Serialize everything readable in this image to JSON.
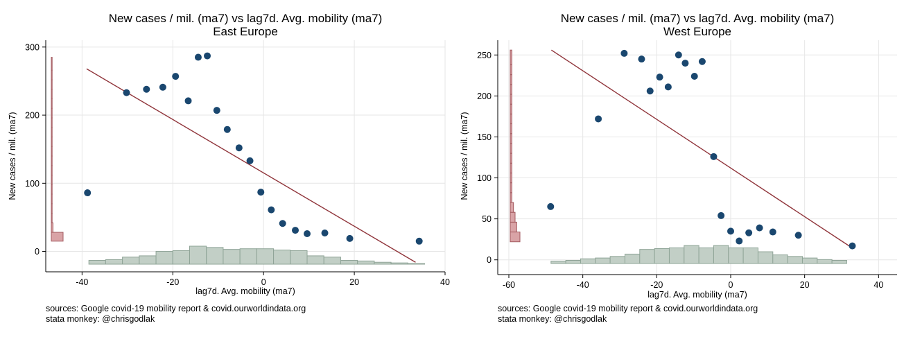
{
  "chart_data": [
    {
      "type": "scatter",
      "title": "New cases / mil. (ma7) vs lag7d. Avg. mobility (ma7)",
      "subtitle": "East Europe",
      "xlabel": "lag7d. Avg. mobility (ma7)",
      "ylabel": "New cases / mil. (ma7)",
      "xlim": [
        -48,
        40
      ],
      "ylim": [
        -30,
        310
      ],
      "xticks": [
        "-40",
        "-20",
        "0",
        "20",
        "40"
      ],
      "xtick_values": [
        -40,
        -20,
        0,
        20,
        40
      ],
      "yticks": [
        "0",
        "100",
        "200",
        "300"
      ],
      "ytick_values": [
        0,
        100,
        200,
        300
      ],
      "grid": true,
      "points": [
        {
          "x": -38.8,
          "y": 86
        },
        {
          "x": -30.2,
          "y": 233
        },
        {
          "x": -25.8,
          "y": 238
        },
        {
          "x": -22.2,
          "y": 241
        },
        {
          "x": -19.4,
          "y": 257
        },
        {
          "x": -16.6,
          "y": 221
        },
        {
          "x": -14.4,
          "y": 285
        },
        {
          "x": -12.4,
          "y": 287
        },
        {
          "x": -10.3,
          "y": 207
        },
        {
          "x": -8.0,
          "y": 179
        },
        {
          "x": -5.4,
          "y": 152
        },
        {
          "x": -3.0,
          "y": 133
        },
        {
          "x": -0.6,
          "y": 87
        },
        {
          "x": 1.7,
          "y": 61
        },
        {
          "x": 4.2,
          "y": 41
        },
        {
          "x": 7.0,
          "y": 31
        },
        {
          "x": 9.6,
          "y": 26
        },
        {
          "x": 13.5,
          "y": 27
        },
        {
          "x": 19.0,
          "y": 19
        },
        {
          "x": 34.3,
          "y": 15
        }
      ],
      "fit_line": {
        "x": [
          -39,
          33.5
        ],
        "y": [
          268,
          -16
        ]
      },
      "x_histogram": {
        "edges": [
          -38.5,
          -34.8,
          -31.1,
          -27.4,
          -23.7,
          -20.0,
          -16.3,
          -12.6,
          -8.9,
          -5.2,
          -1.5,
          2.2,
          5.9,
          9.6,
          13.3,
          17.0,
          20.7,
          24.4,
          28.1,
          31.8,
          35.5
        ],
        "values": [
          6,
          7,
          11,
          13,
          20,
          21,
          28,
          26,
          23,
          24,
          24,
          22,
          21,
          13,
          11,
          6,
          5,
          3,
          2,
          1
        ]
      },
      "y_histogram": {
        "edges": [
          15,
          28,
          42,
          56,
          70,
          84,
          98,
          112,
          126,
          140,
          154,
          168,
          182,
          196,
          210,
          224,
          238,
          252,
          266,
          285
        ],
        "values": [
          14,
          2,
          1,
          1,
          1,
          1,
          1,
          1,
          1,
          1,
          1,
          1,
          1,
          1,
          1,
          1,
          1,
          1,
          1
        ]
      }
    },
    {
      "type": "scatter",
      "title": "New cases / mil. (ma7) vs lag7d. Avg. mobility (ma7)",
      "subtitle": "West Europe",
      "xlabel": "lag7d. Avg. mobility (ma7)",
      "ylabel": "New cases / mil. (ma7)",
      "xlim": [
        -63,
        45
      ],
      "ylim": [
        -18,
        268
      ],
      "xticks": [
        "-60",
        "-40",
        "-20",
        "0",
        "20",
        "40"
      ],
      "xtick_values": [
        -60,
        -40,
        -20,
        0,
        20,
        40
      ],
      "yticks": [
        "0",
        "50",
        "100",
        "150",
        "200",
        "250"
      ],
      "ytick_values": [
        0,
        50,
        100,
        150,
        200,
        250
      ],
      "grid": true,
      "points": [
        {
          "x": -48.7,
          "y": 65
        },
        {
          "x": -35.8,
          "y": 172
        },
        {
          "x": -28.8,
          "y": 252
        },
        {
          "x": -24.1,
          "y": 245
        },
        {
          "x": -21.8,
          "y": 206
        },
        {
          "x": -19.2,
          "y": 223
        },
        {
          "x": -16.9,
          "y": 211
        },
        {
          "x": -14.1,
          "y": 250
        },
        {
          "x": -12.3,
          "y": 240
        },
        {
          "x": -9.8,
          "y": 224
        },
        {
          "x": -7.7,
          "y": 242
        },
        {
          "x": -4.6,
          "y": 126
        },
        {
          "x": -2.6,
          "y": 54
        },
        {
          "x": 0.0,
          "y": 35
        },
        {
          "x": 2.3,
          "y": 23
        },
        {
          "x": 4.9,
          "y": 33
        },
        {
          "x": 7.8,
          "y": 39
        },
        {
          "x": 11.4,
          "y": 34
        },
        {
          "x": 18.3,
          "y": 30
        },
        {
          "x": 32.9,
          "y": 17
        }
      ],
      "fit_line": {
        "x": [
          -48.5,
          32.7
        ],
        "y": [
          256,
          15
        ]
      },
      "x_histogram": {
        "edges": [
          -48.6,
          -44.6,
          -40.6,
          -36.6,
          -32.6,
          -28.6,
          -24.6,
          -20.6,
          -16.6,
          -12.6,
          -8.6,
          -4.6,
          -0.6,
          3.4,
          7.4,
          11.4,
          15.4,
          19.4,
          23.4,
          27.4,
          31.4
        ],
        "values": [
          3,
          4,
          6,
          7,
          9,
          12,
          18,
          19,
          20,
          23,
          20,
          23,
          20,
          20,
          15,
          11,
          9,
          7,
          5,
          4
        ]
      },
      "y_histogram": {
        "edges": [
          22,
          34,
          46,
          58,
          70,
          82,
          94,
          106,
          118,
          130,
          142,
          154,
          166,
          178,
          190,
          202,
          214,
          226,
          238,
          256
        ],
        "values": [
          6,
          4,
          3,
          2,
          1,
          1,
          1,
          1,
          1,
          1,
          1,
          1,
          1,
          1,
          1,
          1,
          1,
          1,
          1
        ]
      }
    }
  ],
  "sources": {
    "left_line1": "sources: Google covid-19 mobility report & covid.ourworldindata.org",
    "left_line2": "stata monkey: @chrisgodlak",
    "right_line1": "sources: Google covid-19 mobility report & covid.ourworldindata.org",
    "right_line2": "stata monkey: @chrisgodlak"
  },
  "colors": {
    "marker": "#1a476f",
    "fit_line": "#90353b",
    "x_hist_fill": "#c2cfc6",
    "x_hist_stroke": "#8fa497",
    "y_hist_fill": "#d9a3a6",
    "y_hist_stroke": "#a35b60",
    "grid": "#e6e6e6",
    "axis": "#000000"
  }
}
